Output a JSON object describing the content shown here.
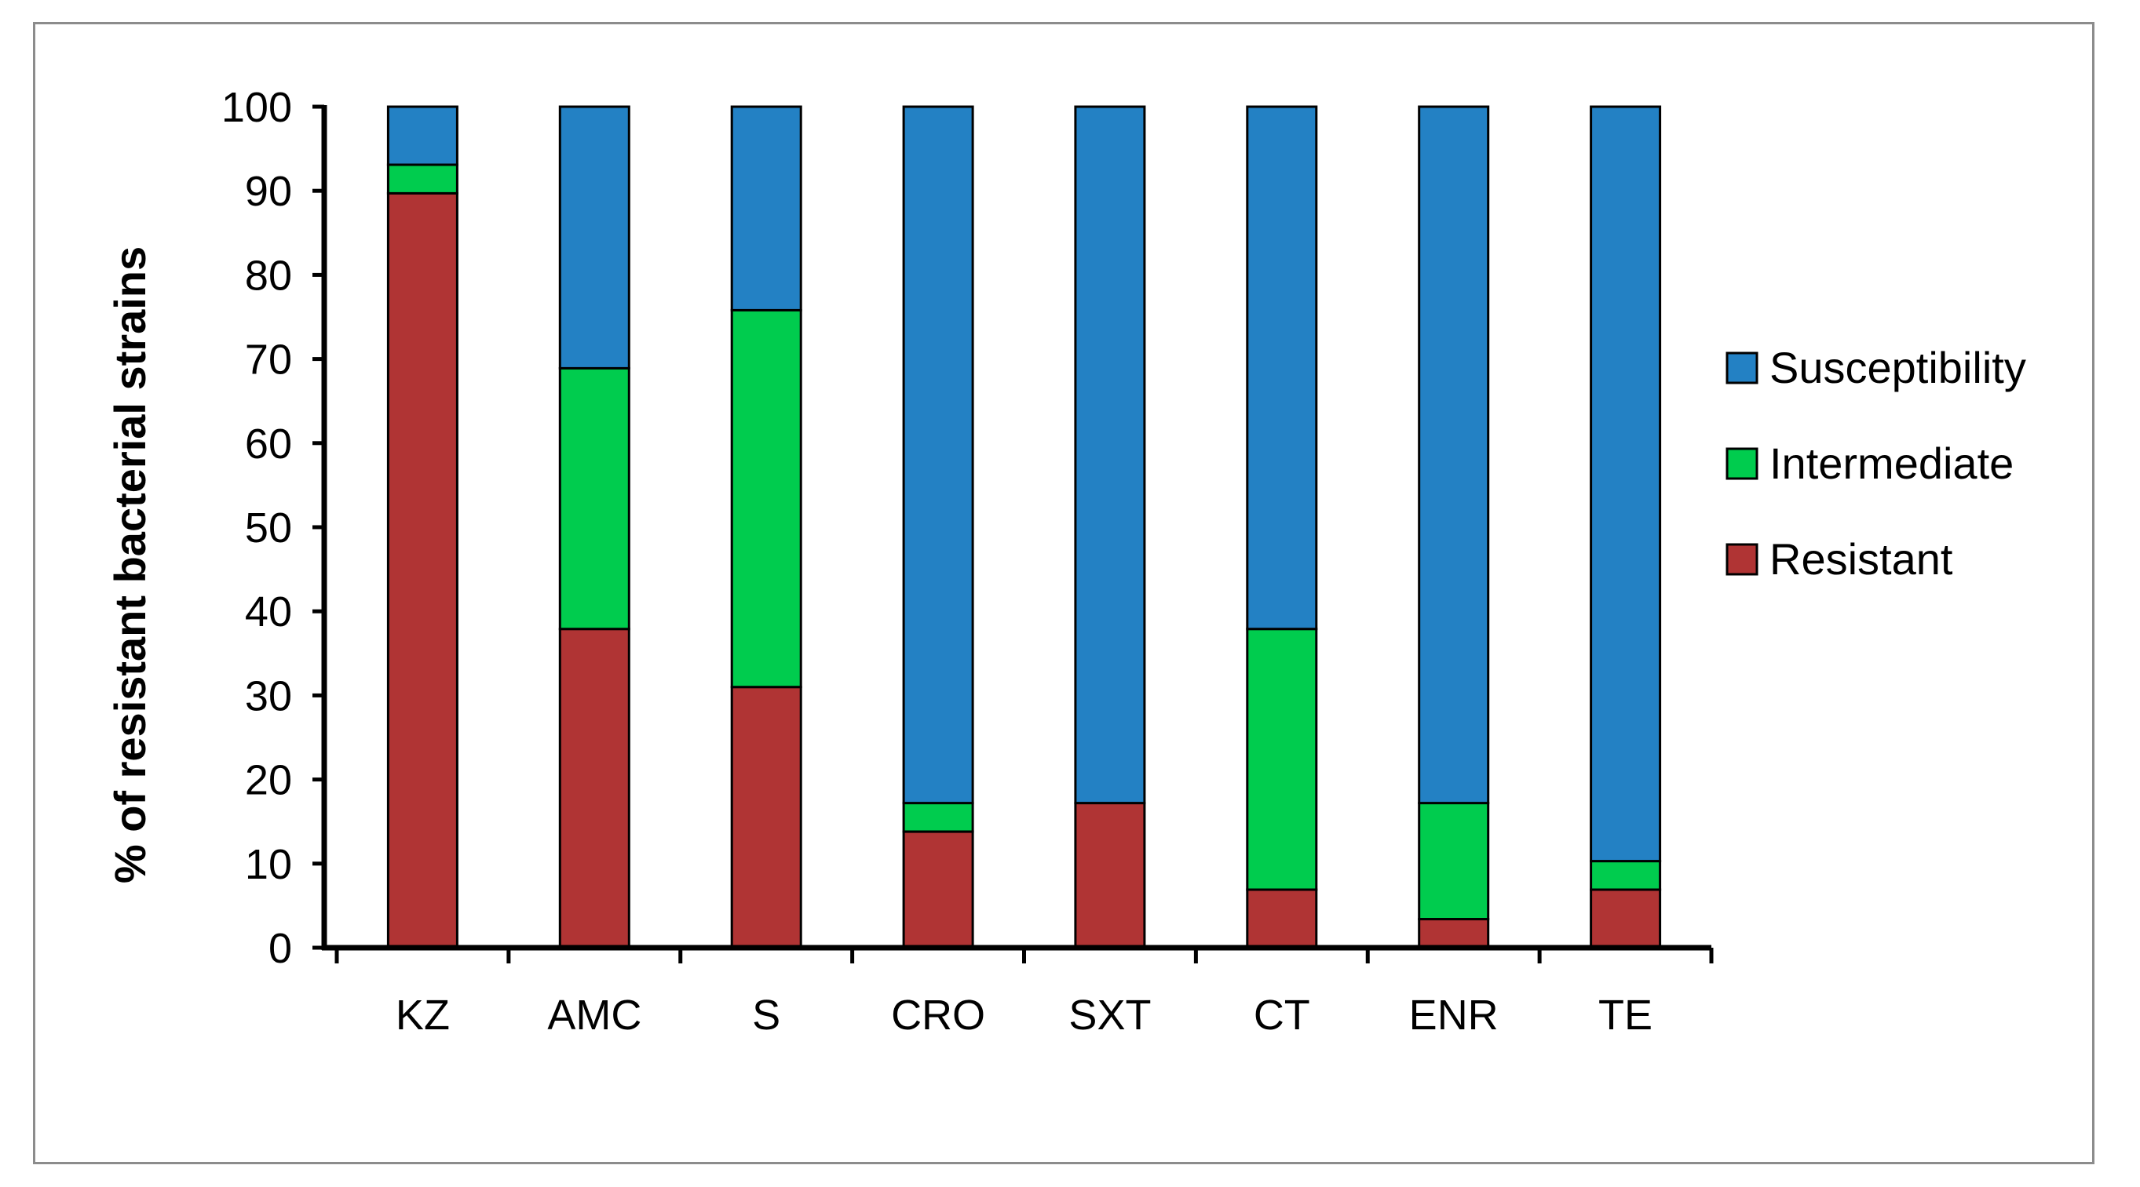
{
  "chart_data": {
    "type": "bar",
    "stacked": true,
    "title": "",
    "xlabel": "",
    "ylabel": "% of  resistant bacterial  strains",
    "ylim": [
      0,
      100
    ],
    "yticks": [
      0,
      10,
      20,
      30,
      40,
      50,
      60,
      70,
      80,
      90,
      100
    ],
    "categories": [
      "KZ",
      "AMC",
      "S",
      "CRO",
      "SXT",
      "CT",
      "ENR",
      "TE"
    ],
    "series": [
      {
        "name": "Resistant",
        "color": "#b03434",
        "values": [
          89.7,
          37.9,
          31.0,
          13.8,
          17.2,
          6.9,
          3.4,
          6.9
        ]
      },
      {
        "name": "Intermediate",
        "color": "#00cc4e",
        "values": [
          3.4,
          31.0,
          44.8,
          3.4,
          0,
          31.0,
          13.8,
          3.4
        ]
      },
      {
        "name": "Susceptibility",
        "color": "#2381c4",
        "values": [
          6.9,
          31.1,
          24.2,
          82.8,
          82.8,
          62.1,
          82.8,
          89.7
        ]
      }
    ],
    "legend": {
      "position": "right",
      "order": [
        "Susceptibility",
        "Intermediate",
        "Resistant"
      ]
    },
    "grid": false
  }
}
